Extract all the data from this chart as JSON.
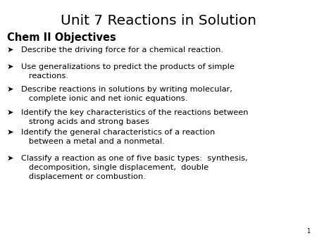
{
  "title": "Unit 7 Reactions in Solution",
  "subtitle": "Chem II Objectives",
  "bullets": [
    "Describe the driving force for a chemical reaction.",
    "Use generalizations to predict the products of simple\n   reactions.",
    "Describe reactions in solutions by writing molecular,\n   complete ionic and net ionic equations.",
    "Identify the key characteristics of the reactions between\n   strong acids and strong bases",
    "Identify the general characteristics of a reaction\n   between a metal and a nonmetal.",
    "Classify a reaction as one of five basic types:  synthesis,\n   decomposition, single displacement,  double\n   displacement or combustion."
  ],
  "background_color": "#ffffff",
  "title_fontsize": 14.5,
  "subtitle_fontsize": 10.5,
  "bullet_fontsize": 8.2,
  "page_number": "1"
}
